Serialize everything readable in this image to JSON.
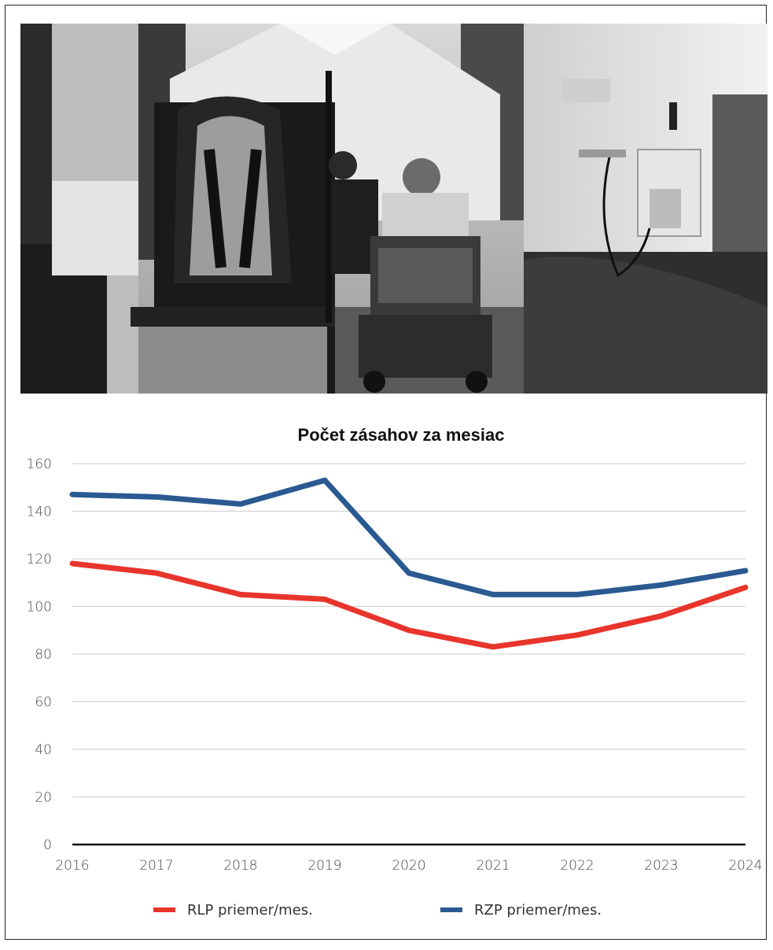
{
  "photo": {
    "icon": "ambulance-interior-photo",
    "tone": "grayscale"
  },
  "chart_data": {
    "type": "line",
    "title": "Počet zásahov za mesiac",
    "x": [
      "2016",
      "2017",
      "2018",
      "2019",
      "2020",
      "2021",
      "2022",
      "2023",
      "2024"
    ],
    "ylim": [
      0,
      160
    ],
    "yticks": [
      "0",
      "20",
      "40",
      "60",
      "80",
      "100",
      "120",
      "140",
      "160"
    ],
    "grid": true,
    "legend_position": "bottom",
    "series": [
      {
        "name": "RLP priemer/mes.",
        "color": "#e8352c",
        "values": [
          118,
          114,
          105,
          103,
          90,
          83,
          88,
          96,
          108
        ]
      },
      {
        "name": "RZP priemer/mes.",
        "color": "#2a5a91",
        "values": [
          147,
          146,
          143,
          153,
          114,
          105,
          105,
          109,
          115
        ]
      }
    ]
  }
}
